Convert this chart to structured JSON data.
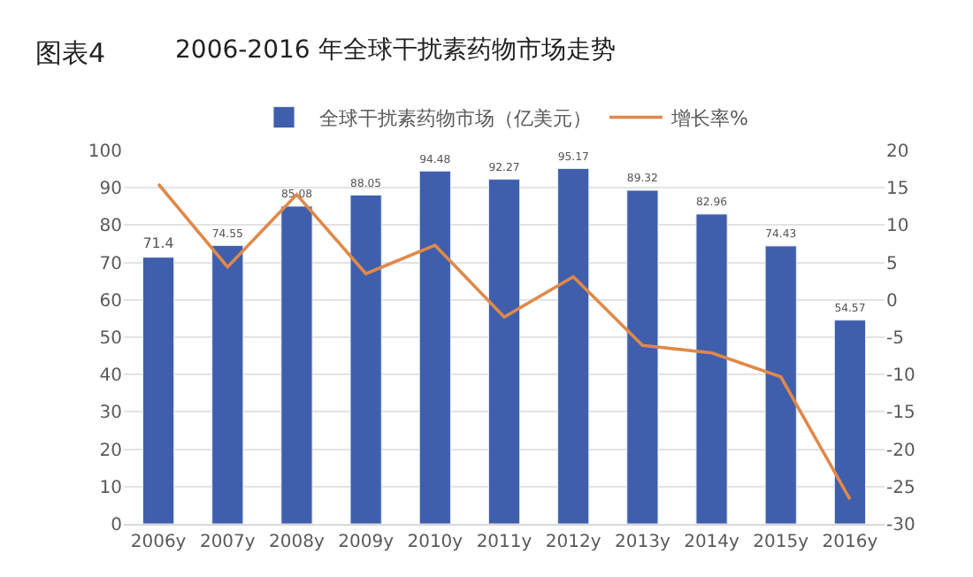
{
  "chart_data": {
    "type": "bar",
    "title": "2006-2016 年全球干扰素药物市场走势",
    "annotations": [
      "图表4"
    ],
    "categories": [
      "2006y",
      "2007y",
      "2008y",
      "2009y",
      "2010y",
      "2011y",
      "2012y",
      "2013y",
      "2014y",
      "2015y",
      "2016y"
    ],
    "series": [
      {
        "name": "全球干扰素药物市场（亿美元）",
        "color": "#3f5eab",
        "values": [
          71.4,
          74.55,
          85.08,
          88.05,
          94.48,
          92.27,
          95.17,
          89.32,
          82.96,
          74.43,
          54.57
        ],
        "data_labels": true
      },
      {
        "name": "增长率%",
        "type": "line",
        "axis": "y2",
        "color": "#e0894a",
        "values": [
          15.5,
          4.4,
          14.1,
          3.5,
          7.3,
          -2.3,
          3.1,
          -6.1,
          -7.1,
          -10.3,
          -26.7
        ]
      }
    ],
    "ylim": [
      0,
      100
    ],
    "yticks": [
      0,
      10,
      20,
      30,
      40,
      50,
      60,
      70,
      80,
      90,
      100
    ],
    "y2lim": [
      -30,
      20
    ],
    "y2ticks": [
      -30,
      -25,
      -20,
      -15,
      -10,
      -5,
      0,
      5,
      10,
      15,
      20
    ],
    "grid": "y",
    "legend": "top",
    "marker": "none"
  }
}
